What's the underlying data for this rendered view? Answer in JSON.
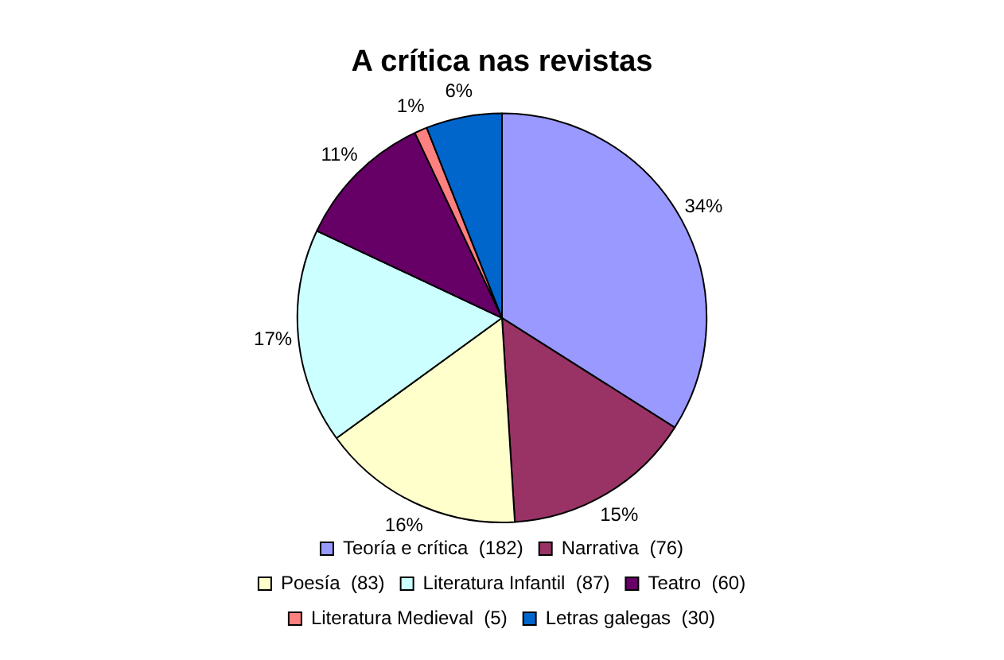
{
  "chart_data": {
    "type": "pie",
    "title": "A crítica nas revistas",
    "categories": [
      "Teoría e crítica  (182)",
      "Narrativa  (76)",
      "Poesía  (83)",
      "Literatura Infantil  (87)",
      "Teatro  (60)",
      "Literatura Medieval  (5)",
      "Letras galegas  (30)"
    ],
    "values": [
      34,
      15,
      16,
      17,
      11,
      1,
      6
    ],
    "colors": [
      "#9999ff",
      "#993366",
      "#ffffcc",
      "#ccffff",
      "#660066",
      "#ff8080",
      "#0066cc"
    ],
    "value_labels": [
      "34%",
      "15%",
      "16%",
      "17%",
      "11%",
      "1%",
      "6%"
    ],
    "legend": "bottom"
  }
}
